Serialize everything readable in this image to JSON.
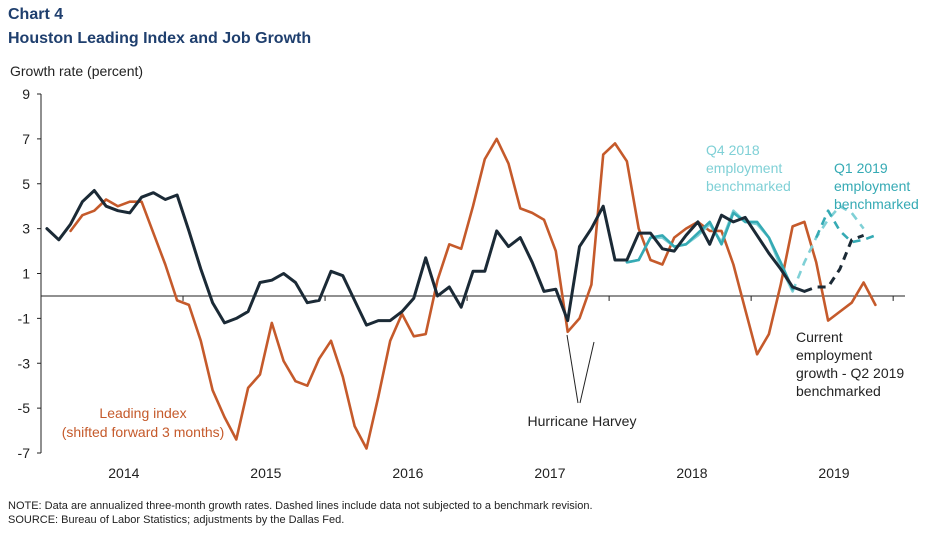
{
  "header": {
    "chart_number": "Chart 4",
    "title": "Houston Leading Index and Job Growth"
  },
  "footer": {
    "note": "NOTE: Data are annualized three-month growth rates. Dashed lines include data not subjected to a benchmark revision.",
    "source": "SOURCE: Bureau of Labor Statistics; adjustments by the Dallas Fed."
  },
  "colors": {
    "leading_index": "#c55a2b",
    "current_growth": "#1b2a36",
    "q4_2018": "#7fd0d6",
    "q1_2019": "#35aab4",
    "title": "#1f3f6e"
  },
  "chart_data": {
    "type": "line",
    "title": "Houston Leading Index and Job Growth",
    "ylabel": "Growth rate (percent)",
    "xlabel": "",
    "ylim": [
      -7,
      9
    ],
    "yticks": [
      9,
      7,
      5,
      3,
      1,
      -1,
      -3,
      -5,
      -7
    ],
    "ytick_labels": [
      "9",
      "7",
      "5",
      "3",
      "1",
      "-1",
      "-3",
      "-5",
      "-7"
    ],
    "x_unit": "months since Jan 2014 (index 0 = Jan 2014)",
    "xlim": [
      -1.5,
      71.5
    ],
    "year_labels": [
      {
        "label": "2014",
        "x": 5.5
      },
      {
        "label": "2015",
        "x": 17.5
      },
      {
        "label": "2016",
        "x": 29.5
      },
      {
        "label": "2017",
        "x": 41.5
      },
      {
        "label": "2018",
        "x": 53.5
      },
      {
        "label": "2019",
        "x": 65.5
      }
    ],
    "x_ticks": [
      -1.5,
      10.5,
      22.5,
      34.5,
      46.5,
      58.5,
      70.5
    ],
    "zero_line": 0,
    "series": [
      {
        "name": "Leading index (shifted forward 3 months)",
        "color": "#c55a2b",
        "dash": false,
        "start": 1,
        "values": [
          2.9,
          3.6,
          3.8,
          4.3,
          4.0,
          4.2,
          4.2,
          2.8,
          1.4,
          -0.2,
          -0.4,
          -2.0,
          -4.2,
          -5.4,
          -6.4,
          -4.1,
          -3.5,
          -1.2,
          -2.9,
          -3.8,
          -4.0,
          -2.8,
          -2.0,
          -3.6,
          -5.8,
          -6.8,
          -4.5,
          -2.0,
          -0.8,
          -1.8,
          -1.7,
          0.7,
          2.3,
          2.1,
          4.0,
          6.1,
          7.0,
          5.9,
          3.9,
          3.7,
          3.4,
          2.0,
          -1.6,
          -1.0,
          0.5,
          6.3,
          6.8,
          6.0,
          3.0,
          1.6,
          1.4,
          2.6,
          3.0,
          3.3,
          2.9,
          2.9,
          1.4,
          -0.6,
          -2.6,
          -1.7,
          0.5,
          3.1,
          3.3,
          1.5,
          -1.1,
          -0.7,
          -0.3,
          0.6,
          -0.4
        ]
      },
      {
        "name": "Current employment growth - Q2 2019 benchmarked",
        "color": "#1b2a36",
        "dash": false,
        "start": -1,
        "values": [
          3.0,
          2.5,
          3.2,
          4.2,
          4.7,
          4.0,
          3.8,
          3.7,
          4.4,
          4.6,
          4.3,
          4.5,
          2.9,
          1.2,
          -0.3,
          -1.2,
          -1.0,
          -0.7,
          0.6,
          0.7,
          1.0,
          0.6,
          -0.3,
          -0.2,
          1.1,
          0.9,
          -0.2,
          -1.3,
          -1.1,
          -1.1,
          -0.7,
          -0.1,
          1.7,
          0.0,
          0.4,
          -0.5,
          1.1,
          1.1,
          2.9,
          2.2,
          2.6,
          1.5,
          0.2,
          0.3,
          -1.1,
          2.2,
          3.0,
          4.0,
          1.6,
          1.6,
          2.8,
          2.8,
          2.1,
          2.0,
          2.7,
          3.3,
          2.3,
          3.6,
          3.3,
          3.5,
          2.7,
          1.9,
          1.2,
          0.4,
          0.2
        ]
      },
      {
        "name": "Current employment growth (dashed, not yet benchmarked)",
        "color": "#1b2a36",
        "dash": true,
        "start": 63,
        "values": [
          0.2,
          0.4,
          0.4,
          1.2,
          2.5,
          2.7
        ]
      },
      {
        "name": "Q4 2018 employment benchmarked",
        "color": "#7fd0d6",
        "dash": false,
        "start": 48,
        "values": [
          1.5,
          1.6,
          2.6,
          2.6,
          2.2,
          2.3,
          2.7,
          3.2,
          2.4,
          3.8,
          3.3,
          3.2,
          2.6,
          1.3,
          0.2
        ]
      },
      {
        "name": "Q4 2018 employment benchmarked (dashed)",
        "color": "#7fd0d6",
        "dash": true,
        "start": 62,
        "values": [
          0.2,
          1.5,
          2.6,
          3.4,
          4.0,
          3.7,
          3.0
        ]
      },
      {
        "name": "Q1 2019 employment benchmarked",
        "color": "#35aab4",
        "dash": false,
        "start": 48,
        "values": [
          1.5,
          1.6,
          2.6,
          2.7,
          2.2,
          2.3,
          2.8,
          3.3,
          2.3,
          3.7,
          3.3,
          3.3,
          2.6,
          1.5,
          0.3
        ]
      },
      {
        "name": "Q1 2019 employment benchmarked (dashed)",
        "color": "#35aab4",
        "dash": true,
        "start": 64,
        "values": [
          2.6,
          3.8,
          2.9,
          2.4,
          2.5,
          2.7
        ]
      }
    ],
    "annotations": {
      "leading_index": [
        "Leading index",
        "(shifted forward 3 months)"
      ],
      "hurricane": "Hurricane Harvey",
      "q4_2018": [
        "Q4 2018",
        "employment",
        "benchmarked"
      ],
      "q1_2019": [
        "Q1 2019",
        "employment",
        "benchmarked"
      ],
      "current": [
        "Current",
        "employment",
        "growth - Q2 2019",
        "benchmarked"
      ]
    }
  }
}
